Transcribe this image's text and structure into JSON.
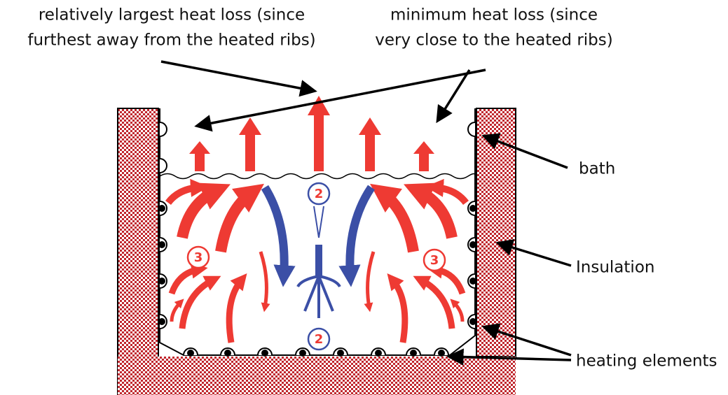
{
  "annotations": {
    "largest_loss": [
      "relatively largest heat loss (since",
      "furthest away from the heated ribs)"
    ],
    "minimum_loss": [
      "minimum heat loss (since",
      "very close to the heated ribs)"
    ]
  },
  "labels": {
    "bath": "bath",
    "insulation": "Insulation",
    "heating_elements": "heating elements"
  },
  "markers": [
    "2",
    "2",
    "3",
    "3"
  ]
}
